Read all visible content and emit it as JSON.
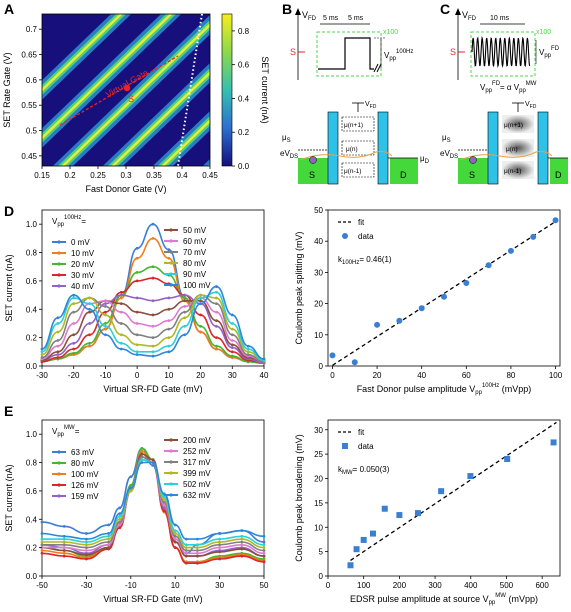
{
  "panels": {
    "A": "A",
    "B": "B",
    "C": "C",
    "D": "D",
    "E": "E"
  },
  "panel_a": {
    "xlabel": "Fast Donor Gate (V)",
    "ylabel": "SET Rate Gate (V)",
    "xticks": [
      "0.15",
      "0.2",
      "0.25",
      "0.3",
      "0.35",
      "0.4",
      "0.45"
    ],
    "yticks": [
      "0.45",
      "0.5",
      "0.55",
      "0.6",
      "0.65",
      "0.7"
    ],
    "colorbar_label": "SET current (nA)",
    "colorbar_ticks": [
      "0.0",
      "0.2",
      "0.4",
      "0.6",
      "0.8"
    ],
    "virtual_gate_label": "Virtual Gate",
    "point_label": "S"
  },
  "panel_b": {
    "v_label": "V",
    "v_sub": "FD",
    "s_label": "S",
    "t1": "5 ms",
    "t2": "5 ms",
    "x100": "x100",
    "vpp": "V",
    "vpp_sub": "pp",
    "vpp_sup": "100Hz",
    "levels": [
      "μ(n+1)",
      "μ(n)",
      "μ(n-1)"
    ],
    "mu_s": "μ",
    "mu_s_sub": "S",
    "ev": "eV",
    "ev_sub": "DS",
    "mu_d": "μ",
    "mu_d_sub": "D",
    "left": "S",
    "right": "D",
    "gate": "V",
    "gate_sub": "FD"
  },
  "panel_c": {
    "v_label": "V",
    "v_sub": "FD",
    "s_label": "S",
    "t1": "10 ms",
    "x100": "x100",
    "vpp_eq": "= α V",
    "vpp_sub": "pp",
    "vpp_sup": "FD",
    "mw_sup": "MW",
    "levels": [
      "μ(n+1)",
      "μ(n)",
      "μ(n-1)"
    ],
    "left": "S",
    "right": "D"
  },
  "panel_d_left": {
    "xlabel": "Virtual SR-FD Gate (mV)",
    "ylabel": "SET current (nA)",
    "xticks": [
      "-30",
      "-20",
      "-10",
      "0",
      "10",
      "20",
      "30",
      "40"
    ],
    "yticks": [
      "0.0",
      "0.2",
      "0.4",
      "0.6",
      "0.8",
      "1.0"
    ],
    "legend_title": "V",
    "legend_title_sub": "pp",
    "legend_title_sup": "100Hz",
    "legend_title_eq": "=",
    "legend": [
      {
        "label": "0 mV",
        "color": "#3a7fd4"
      },
      {
        "label": "10 mV",
        "color": "#f07c1c"
      },
      {
        "label": "20 mV",
        "color": "#44b82d"
      },
      {
        "label": "30 mV",
        "color": "#d9272b"
      },
      {
        "label": "40 mV",
        "color": "#9362c9"
      },
      {
        "label": "50 mV",
        "color": "#8c4f3a"
      },
      {
        "label": "60 mV",
        "color": "#e07ad1"
      },
      {
        "label": "70 mV",
        "color": "#808080"
      },
      {
        "label": "80 mV",
        "color": "#b2b822"
      },
      {
        "label": "90 mV",
        "color": "#2ed0d8"
      },
      {
        "label": "100 mV",
        "color": "#2e87d8"
      }
    ]
  },
  "panel_d_right": {
    "xlabel": "Fast Donor pulse amplitude V",
    "xlabel_sub": "pp",
    "xlabel_sup": "100Hz",
    "xlabel_unit": " (mVpp)",
    "ylabel": "Coulomb peak splitting (mV)",
    "xticks": [
      "0",
      "20",
      "40",
      "60",
      "80",
      "100"
    ],
    "yticks": [
      "0",
      "10",
      "20",
      "30",
      "40",
      "50"
    ],
    "legend_fit": "fit",
    "legend_data": "data",
    "k_label": "k",
    "k_sub": "100Hz",
    "k_value": "= 0.46(1)"
  },
  "panel_e_left": {
    "xlabel": "Virtual SR-FD Gate (mV)",
    "ylabel": "SET current (nA)",
    "xticks": [
      "-50",
      "-30",
      "-10",
      "10",
      "30",
      "50"
    ],
    "yticks": [
      "0.0",
      "0.2",
      "0.4",
      "0.6",
      "0.8",
      "1.0"
    ],
    "legend_title": "V",
    "legend_title_sub": "pp",
    "legend_title_sup": "MW",
    "legend_title_eq": "=",
    "legend": [
      {
        "label": "63 mV",
        "color": "#3a7fd4"
      },
      {
        "label": "80 mV",
        "color": "#44b82d"
      },
      {
        "label": "100 mV",
        "color": "#f07c1c"
      },
      {
        "label": "126 mV",
        "color": "#d9272b"
      },
      {
        "label": "159 mV",
        "color": "#9362c9"
      },
      {
        "label": "200 mV",
        "color": "#8c4f3a"
      },
      {
        "label": "252 mV",
        "color": "#e07ad1"
      },
      {
        "label": "317 mV",
        "color": "#808080"
      },
      {
        "label": "399 mV",
        "color": "#b2b822"
      },
      {
        "label": "502 mV",
        "color": "#2ed0d8"
      },
      {
        "label": "632 mV",
        "color": "#2e87d8"
      }
    ]
  },
  "panel_e_right": {
    "xlabel": "EDSR pulse amplitude at source V",
    "xlabel_sub": "pp",
    "xlabel_sup": "MW",
    "xlabel_unit": " (mVpp)",
    "ylabel": "Coulomb peak broadening (mV)",
    "xticks": [
      "0",
      "100",
      "200",
      "300",
      "400",
      "500",
      "600"
    ],
    "yticks": [
      "0",
      "5",
      "10",
      "15",
      "20",
      "25",
      "30"
    ],
    "legend_fit": "fit",
    "legend_data": "data",
    "k_label": "k",
    "k_sub": "MW",
    "k_value": "= 0.050(3)"
  },
  "chart_data": [
    {
      "type": "heatmap",
      "panel": "A",
      "xlim": [
        0.15,
        0.45
      ],
      "ylim": [
        0.43,
        0.73
      ],
      "zlim": [
        0.0,
        0.9
      ]
    },
    {
      "type": "line",
      "panel": "D-left",
      "xlim": [
        -30,
        40
      ],
      "ylim": [
        0.0,
        1.1
      ],
      "x": [
        -30,
        -25,
        -20,
        -15,
        -10,
        -5,
        0,
        5,
        10,
        15,
        20,
        25,
        30,
        35,
        40
      ],
      "series": [
        {
          "name": "0 mV",
          "values": [
            0.03,
            0.05,
            0.08,
            0.14,
            0.26,
            0.5,
            0.83,
            1.0,
            0.82,
            0.48,
            0.24,
            0.12,
            0.06,
            0.03,
            0.02
          ]
        },
        {
          "name": "10 mV",
          "values": [
            0.03,
            0.05,
            0.08,
            0.14,
            0.26,
            0.48,
            0.76,
            0.9,
            0.76,
            0.46,
            0.24,
            0.12,
            0.06,
            0.03,
            0.02
          ]
        },
        {
          "name": "20 mV",
          "values": [
            0.03,
            0.05,
            0.09,
            0.16,
            0.3,
            0.5,
            0.66,
            0.7,
            0.64,
            0.48,
            0.28,
            0.14,
            0.07,
            0.03,
            0.02
          ]
        },
        {
          "name": "30 mV",
          "values": [
            0.03,
            0.06,
            0.12,
            0.22,
            0.38,
            0.52,
            0.6,
            0.62,
            0.58,
            0.5,
            0.36,
            0.2,
            0.1,
            0.04,
            0.02
          ]
        },
        {
          "name": "40 mV",
          "values": [
            0.04,
            0.08,
            0.16,
            0.3,
            0.44,
            0.5,
            0.48,
            0.46,
            0.48,
            0.5,
            0.44,
            0.28,
            0.13,
            0.05,
            0.02
          ]
        },
        {
          "name": "50 mV",
          "values": [
            0.04,
            0.1,
            0.22,
            0.38,
            0.46,
            0.44,
            0.38,
            0.36,
            0.4,
            0.46,
            0.46,
            0.32,
            0.15,
            0.06,
            0.03
          ]
        },
        {
          "name": "60 mV",
          "values": [
            0.05,
            0.14,
            0.3,
            0.44,
            0.46,
            0.38,
            0.3,
            0.28,
            0.32,
            0.42,
            0.48,
            0.38,
            0.18,
            0.07,
            0.03
          ]
        },
        {
          "name": "70 mV",
          "values": [
            0.06,
            0.18,
            0.38,
            0.48,
            0.42,
            0.3,
            0.22,
            0.2,
            0.26,
            0.38,
            0.5,
            0.44,
            0.22,
            0.08,
            0.03
          ]
        },
        {
          "name": "80 mV",
          "values": [
            0.08,
            0.24,
            0.44,
            0.48,
            0.36,
            0.22,
            0.15,
            0.14,
            0.2,
            0.34,
            0.5,
            0.48,
            0.26,
            0.1,
            0.04
          ]
        },
        {
          "name": "90 mV",
          "values": [
            0.1,
            0.3,
            0.48,
            0.44,
            0.28,
            0.16,
            0.1,
            0.1,
            0.14,
            0.28,
            0.48,
            0.52,
            0.3,
            0.12,
            0.04
          ]
        },
        {
          "name": "100 mV",
          "values": [
            0.12,
            0.34,
            0.5,
            0.4,
            0.22,
            0.12,
            0.08,
            0.07,
            0.1,
            0.22,
            0.44,
            0.56,
            0.36,
            0.14,
            0.05
          ]
        }
      ]
    },
    {
      "type": "scatter",
      "panel": "D-right",
      "xlim": [
        -2,
        102
      ],
      "ylim": [
        0,
        50
      ],
      "x": [
        0,
        10,
        20,
        30,
        40,
        50,
        60,
        70,
        80,
        90,
        100
      ],
      "values": [
        3.4,
        1.2,
        13.2,
        14.5,
        18.5,
        22.2,
        26.6,
        32.3,
        36.9,
        41.4,
        46.7
      ],
      "fit": {
        "x": [
          0,
          100
        ],
        "y": [
          0.2,
          46.3
        ]
      }
    },
    {
      "type": "line",
      "panel": "E-left",
      "xlim": [
        -50,
        50
      ],
      "ylim": [
        0.0,
        1.1
      ],
      "x": [
        -50,
        -40,
        -30,
        -20,
        -15,
        -10,
        -5,
        0,
        5,
        10,
        15,
        20,
        30,
        40,
        50
      ],
      "series": [
        {
          "name": "63 mV",
          "values": [
            0.38,
            0.35,
            0.3,
            0.36,
            0.48,
            0.7,
            0.9,
            0.78,
            0.46,
            0.24,
            0.16,
            0.22,
            0.3,
            0.32,
            0.24
          ]
        },
        {
          "name": "80 mV",
          "values": [
            0.2,
            0.18,
            0.14,
            0.2,
            0.36,
            0.64,
            0.9,
            0.82,
            0.46,
            0.2,
            0.1,
            0.1,
            0.14,
            0.16,
            0.12
          ]
        },
        {
          "name": "100 mV",
          "values": [
            0.18,
            0.16,
            0.13,
            0.2,
            0.36,
            0.62,
            0.88,
            0.8,
            0.45,
            0.2,
            0.1,
            0.1,
            0.13,
            0.15,
            0.11
          ]
        },
        {
          "name": "126 mV",
          "values": [
            0.16,
            0.14,
            0.12,
            0.19,
            0.34,
            0.6,
            0.86,
            0.8,
            0.46,
            0.2,
            0.09,
            0.09,
            0.12,
            0.14,
            0.1
          ]
        },
        {
          "name": "159 mV",
          "values": [
            0.22,
            0.2,
            0.16,
            0.22,
            0.38,
            0.62,
            0.86,
            0.8,
            0.48,
            0.24,
            0.14,
            0.14,
            0.18,
            0.2,
            0.14
          ]
        },
        {
          "name": "200 mV",
          "values": [
            0.2,
            0.18,
            0.15,
            0.2,
            0.36,
            0.6,
            0.86,
            0.82,
            0.5,
            0.24,
            0.14,
            0.14,
            0.17,
            0.19,
            0.14
          ]
        },
        {
          "name": "252 mV",
          "values": [
            0.2,
            0.2,
            0.18,
            0.22,
            0.36,
            0.6,
            0.84,
            0.8,
            0.5,
            0.26,
            0.16,
            0.16,
            0.2,
            0.22,
            0.16
          ]
        },
        {
          "name": "317 mV",
          "values": [
            0.22,
            0.22,
            0.2,
            0.24,
            0.38,
            0.6,
            0.84,
            0.8,
            0.52,
            0.28,
            0.18,
            0.18,
            0.22,
            0.24,
            0.18
          ]
        },
        {
          "name": "399 mV",
          "values": [
            0.24,
            0.24,
            0.22,
            0.26,
            0.4,
            0.6,
            0.82,
            0.8,
            0.54,
            0.3,
            0.2,
            0.2,
            0.24,
            0.26,
            0.2
          ]
        },
        {
          "name": "502 mV",
          "values": [
            0.26,
            0.26,
            0.24,
            0.28,
            0.42,
            0.62,
            0.82,
            0.8,
            0.56,
            0.32,
            0.22,
            0.22,
            0.26,
            0.28,
            0.22
          ]
        },
        {
          "name": "632 mV",
          "values": [
            0.3,
            0.28,
            0.26,
            0.3,
            0.44,
            0.62,
            0.8,
            0.8,
            0.58,
            0.36,
            0.26,
            0.26,
            0.3,
            0.32,
            0.28
          ]
        }
      ]
    },
    {
      "type": "scatter",
      "panel": "E-right",
      "xlim": [
        0,
        650
      ],
      "ylim": [
        0,
        32
      ],
      "x": [
        63,
        80,
        100,
        126,
        159,
        200,
        252,
        317,
        399,
        502,
        632
      ],
      "values": [
        2.2,
        5.5,
        7.4,
        8.7,
        13.8,
        12.5,
        12.9,
        17.4,
        20.5,
        24.0,
        27.4
      ],
      "fit": {
        "x": [
          63,
          640
        ],
        "y": [
          3.2,
          31.5
        ]
      }
    }
  ]
}
